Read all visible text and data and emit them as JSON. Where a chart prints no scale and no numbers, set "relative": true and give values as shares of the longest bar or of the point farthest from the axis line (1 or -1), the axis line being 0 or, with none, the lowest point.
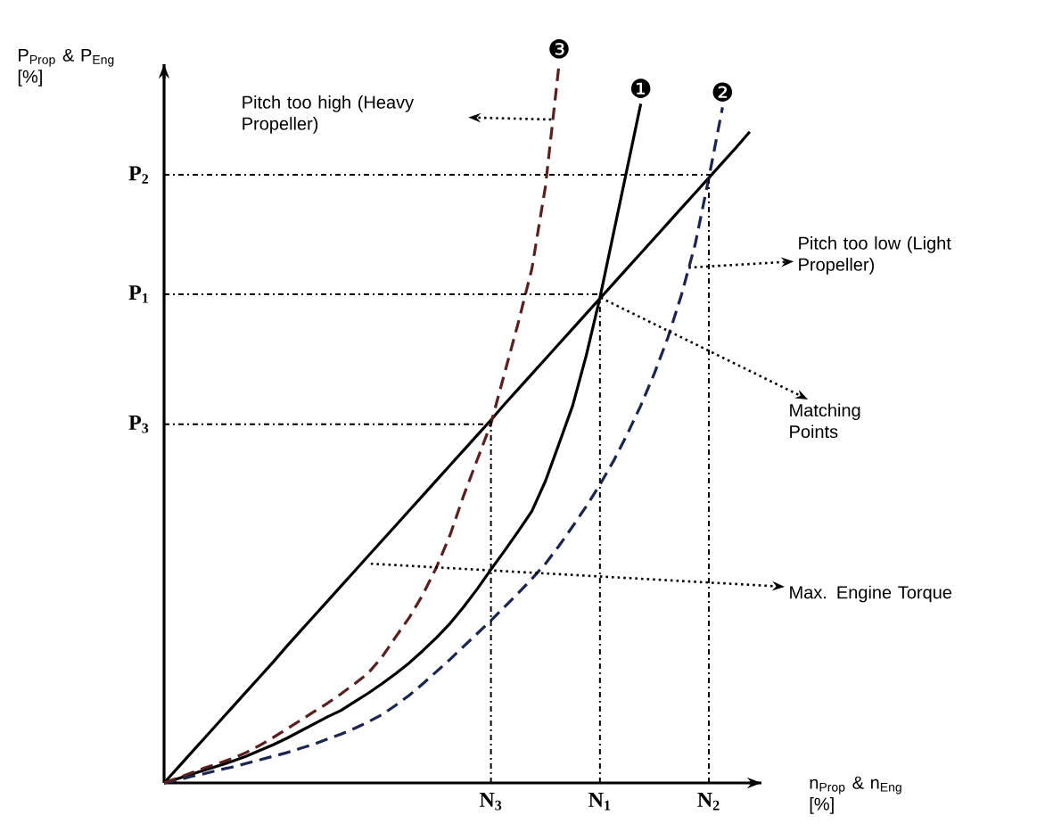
{
  "chart_data": {
    "type": "line",
    "relative": true,
    "xlabel": "n$_{Prop}$ & n$_{Eng}$ [%]",
    "ylabel": "P$_{Prop}$ & P$_{Eng}$ [%]",
    "categories": [
      null,
      null,
      null,
      null,
      null,
      null,
      null,
      null,
      null,
      null,
      null,
      null,
      null,
      null,
      null,
      null,
      null,
      null,
      null,
      null,
      null,
      null,
      null,
      null,
      "N$_{3}$",
      null,
      null,
      null,
      null,
      null,
      null,
      null,
      "N$_{1}$",
      null,
      null,
      null,
      null,
      null,
      null,
      null,
      "N$_{2}$",
      null,
      null,
      null
    ],
    "series": [
      {
        "color": "#000000",
        "line_style": "solid",
        "values": [
          0,
          0.021,
          0.042,
          0.063,
          0.084,
          0.105,
          0.126,
          0.147,
          0.168,
          0.19,
          0.211,
          0.232,
          0.253,
          0.274,
          0.295,
          0.316,
          0.337,
          0.358,
          0.379,
          0.4,
          0.421,
          0.442,
          0.463,
          0.484,
          0.505,
          0.527,
          0.548,
          0.569,
          0.59,
          0.611,
          0.632,
          0.653,
          0.674,
          0.695,
          0.716,
          0.737,
          0.758,
          0.779,
          0.8,
          0.821,
          0.842,
          0.863,
          0.884,
          0.906
        ]
      },
      {
        "name": "❶",
        "color": "#000000",
        "line_style": "solid",
        "values": [
          0,
          0.006,
          0.012,
          0.018,
          0.024,
          0.03,
          0.037,
          0.045,
          0.053,
          0.062,
          0.072,
          0.082,
          0.092,
          0.101,
          0.113,
          0.125,
          0.138,
          0.152,
          0.167,
          0.184,
          0.202,
          0.222,
          0.245,
          0.27,
          0.297,
          0.323,
          0.35,
          0.378,
          0.42,
          0.472,
          0.525,
          0.595,
          0.675,
          0.765,
          0.855,
          0.945,
          null,
          null,
          null,
          null,
          null,
          null,
          null,
          null
        ]
      },
      {
        "name": "❷",
        "color": "#1c2450",
        "line_style": "dashed",
        "values": [
          0,
          0.004,
          0.009,
          0.013,
          0.018,
          0.022,
          0.027,
          0.032,
          0.037,
          0.042,
          0.048,
          0.054,
          0.061,
          0.068,
          0.076,
          0.085,
          0.095,
          0.108,
          0.122,
          0.138,
          0.155,
          0.172,
          0.19,
          0.208,
          0.226,
          0.245,
          0.264,
          0.284,
          0.305,
          0.33,
          0.357,
          0.385,
          0.415,
          0.448,
          0.485,
          0.525,
          0.57,
          0.62,
          0.68,
          0.75,
          0.842,
          0.94,
          null,
          null
        ]
      },
      {
        "name": "❸",
        "color": "#5a1f1f",
        "line_style": "dashed",
        "values": [
          0,
          0.007,
          0.014,
          0.021,
          0.027,
          0.034,
          0.042,
          0.052,
          0.063,
          0.075,
          0.087,
          0.099,
          0.111,
          0.124,
          0.138,
          0.153,
          0.175,
          0.203,
          0.23,
          0.262,
          0.3,
          0.345,
          0.4,
          0.45,
          0.5,
          0.57,
          0.64,
          0.715,
          0.83,
          1.0,
          null,
          null,
          null,
          null,
          null,
          null,
          null,
          null,
          null,
          null,
          null,
          null,
          null,
          null
        ]
      }
    ],
    "ref_lines": [
      {
        "axis": "y",
        "value": 0.846,
        "label": "P$_{2}$",
        "line_style": "dotted"
      },
      {
        "axis": "y",
        "value": 0.68,
        "label": "P$_{1}$",
        "line_style": "dotted"
      },
      {
        "axis": "y",
        "value": 0.499,
        "label": "P$_{3}$",
        "line_style": "dotted"
      }
    ],
    "annotations": [
      "Pitch too high (Heavy Propeller)",
      "Pitch too low (Light Propeller)",
      "Matching Points",
      "Max. Engine Torque"
    ]
  }
}
